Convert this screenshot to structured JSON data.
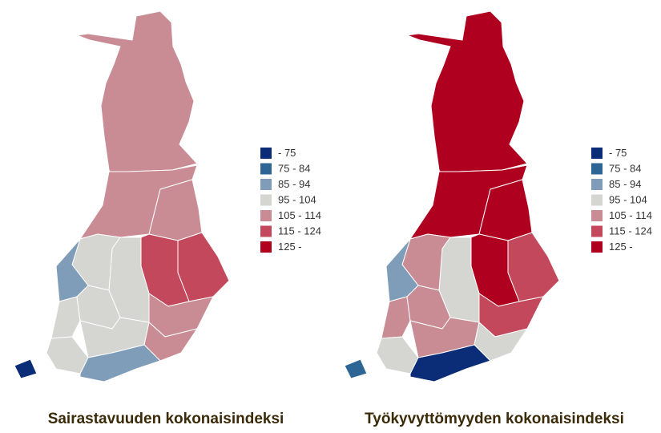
{
  "maps": [
    {
      "title": "Sairastavuuden kokonaisindeksi"
    },
    {
      "title": "Työkyvyttömyyden kokonaisindeksi"
    }
  ],
  "legend": [
    {
      "label": "- 75",
      "color": "#0b2d78"
    },
    {
      "label": "75 - 84",
      "color": "#2d6695"
    },
    {
      "label": "85 - 94",
      "color": "#7f9db9"
    },
    {
      "label": "95 - 104",
      "color": "#d5d5d1"
    },
    {
      "label": "105 - 114",
      "color": "#c98c94"
    },
    {
      "label": "115 - 124",
      "color": "#c4485b"
    },
    {
      "label": "125 -",
      "color": "#b0001f"
    }
  ]
}
